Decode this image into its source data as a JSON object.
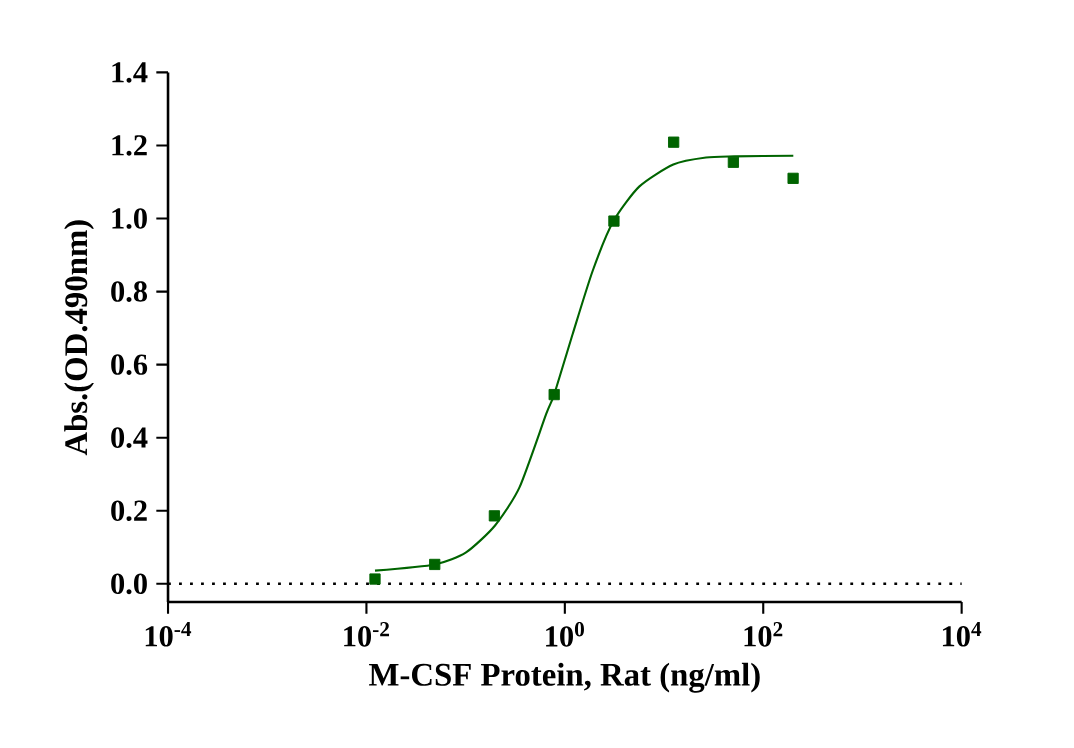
{
  "chart_data": {
    "type": "scatter",
    "xlabel": "M-CSF Protein, Rat (ng/ml)",
    "ylabel": "Abs.(OD.490nm)",
    "log": "x",
    "marker": "square",
    "xlim": [
      0.0001,
      10000
    ],
    "ylim": [
      -0.05,
      1.4
    ],
    "xticks": [
      {
        "value": 0.0001,
        "label": "10$^{-4}$"
      },
      {
        "value": 0.01,
        "label": "10$^{-2}$"
      },
      {
        "value": 1,
        "label": "10$^{0}$"
      },
      {
        "value": 100,
        "label": "10$^{2}$"
      },
      {
        "value": 10000,
        "label": "10$^{4}$"
      }
    ],
    "yticks": [
      {
        "value": 0,
        "label": "0.0"
      },
      {
        "value": 0.2,
        "label": "0.2"
      },
      {
        "value": 0.4,
        "label": "0.4"
      },
      {
        "value": 0.6,
        "label": "0.6"
      },
      {
        "value": 0.8,
        "label": "0.8"
      },
      {
        "value": 1.0,
        "label": "1.0"
      },
      {
        "value": 1.2,
        "label": "1.2"
      },
      {
        "value": 1.4,
        "label": "1.4"
      }
    ],
    "ref_lines": [
      {
        "axis": "y",
        "value": 0,
        "color": "#000000",
        "line_style": "dotted"
      }
    ],
    "series": [
      {
        "color": "#006400",
        "x": [
          0.0122,
          0.0488,
          0.195,
          0.781,
          3.125,
          12.5,
          50,
          200
        ],
        "values": [
          0.013,
          0.053,
          0.186,
          0.518,
          0.993,
          1.209,
          1.154,
          1.11
        ]
      },
      {
        "type": "line",
        "color": "#006400",
        "marker": "none",
        "x": [
          0.0122,
          0.049,
          0.101,
          0.197,
          0.349,
          0.649,
          0.78,
          1.2,
          1.91,
          3.09,
          5.65,
          12.4,
          26.5,
          50.8,
          201
        ],
        "values": [
          0.036,
          0.053,
          0.086,
          0.159,
          0.264,
          0.465,
          0.518,
          0.684,
          0.857,
          0.993,
          1.088,
          1.148,
          1.167,
          1.17,
          1.172
        ]
      }
    ]
  }
}
